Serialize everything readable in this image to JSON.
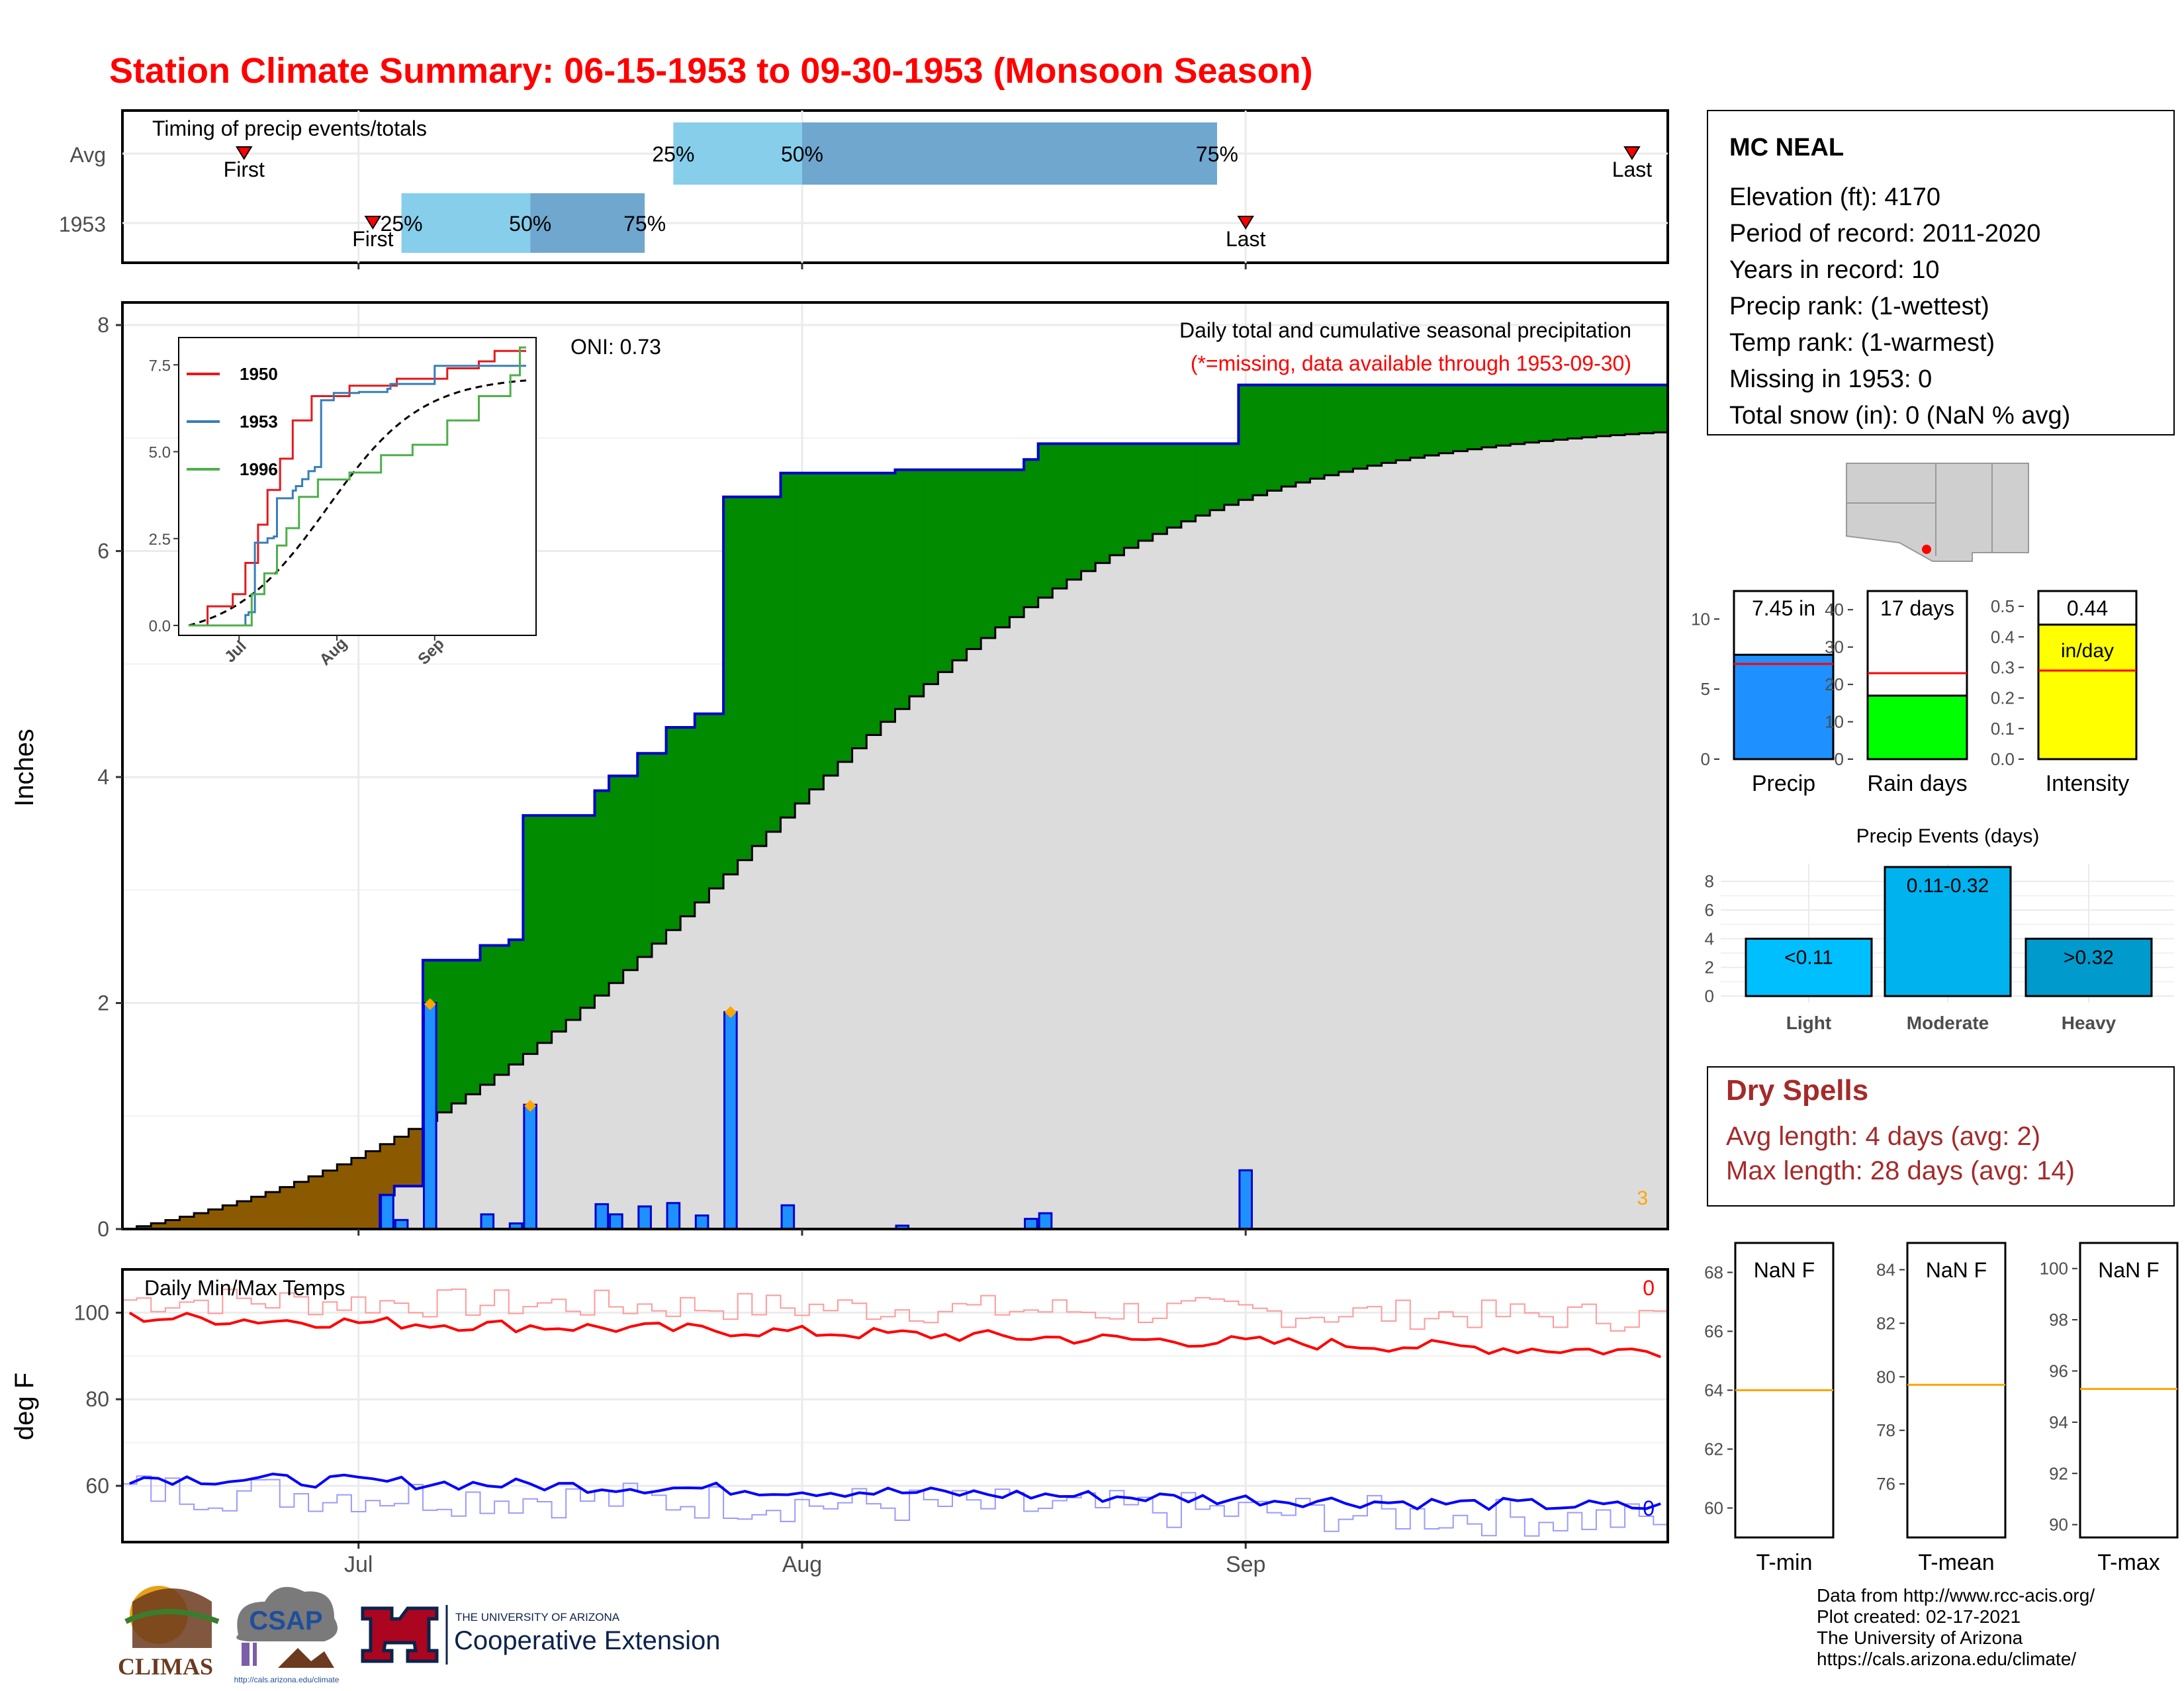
{
  "title": "Station Climate Summary: 06-15-1953 to 09-30-1953 (Monsoon Season)",
  "colors": {
    "title": "#ff0000",
    "precip_bar": "#1e90ff",
    "cum_1953": "#0000cd",
    "surplus": "#008b00",
    "normal": "#dcdcdc",
    "deficit": "#8b5a00",
    "tmax": "#ff0000",
    "tmin": "#0000ff",
    "dryspell": "#a52a2a"
  },
  "timing": {
    "title": "Timing of precip events/totals",
    "rows": [
      {
        "label": "Avg",
        "first_label": "First",
        "last_label": "Last",
        "q25": "25%",
        "q50": "50%",
        "q75": "75%",
        "first": "06-23",
        "p25": "07-23",
        "p50": "08-01",
        "p75": "08-30",
        "last": "09-28"
      },
      {
        "label": "1953",
        "first_label": "First",
        "last_label": "Last",
        "q25": "25%",
        "q50": "50%",
        "q75": "75%",
        "first": "07-02",
        "p25": "07-04",
        "p50": "07-13",
        "p75": "07-21",
        "last": "09-01"
      }
    ]
  },
  "main": {
    "ylabel": "Inches",
    "oni": "ONI: 0.73",
    "legend_title": "Daily total and cumulative seasonal precipitation",
    "missing_note": "(*=missing, data available through 1953-09-30)",
    "missing_count": "3",
    "x_ticks": [
      "Jul",
      "Aug",
      "Sep"
    ],
    "y_ticks": [
      "0",
      "2",
      "4",
      "6",
      "8"
    ]
  },
  "chart_data": [
    {
      "type": "area",
      "title": "Daily total and cumulative seasonal precipitation",
      "ylabel": "Inches",
      "ylim": [
        0,
        8.2
      ],
      "x_range": [
        "06-15",
        "09-30"
      ],
      "daily_precip": [
        {
          "date": "07-03",
          "value": 0.3
        },
        {
          "date": "07-04",
          "value": 0.08
        },
        {
          "date": "07-06",
          "value": 2.0
        },
        {
          "date": "07-10",
          "value": 0.13
        },
        {
          "date": "07-12",
          "value": 0.05
        },
        {
          "date": "07-13",
          "value": 1.1
        },
        {
          "date": "07-18",
          "value": 0.22
        },
        {
          "date": "07-19",
          "value": 0.13
        },
        {
          "date": "07-21",
          "value": 0.2
        },
        {
          "date": "07-23",
          "value": 0.23
        },
        {
          "date": "07-25",
          "value": 0.12
        },
        {
          "date": "07-27",
          "value": 1.92
        },
        {
          "date": "07-31",
          "value": 0.21
        },
        {
          "date": "08-08",
          "value": 0.03
        },
        {
          "date": "08-17",
          "value": 0.09
        },
        {
          "date": "08-18",
          "value": 0.14
        },
        {
          "date": "09-01",
          "value": 0.52
        }
      ],
      "orange_markers": [
        {
          "date": "07-06",
          "value": 1.99
        },
        {
          "date": "07-13",
          "value": 1.09
        },
        {
          "date": "07-27",
          "value": 1.92
        }
      ],
      "cumulative_normal_end": 7.05
    },
    {
      "type": "line",
      "title": "",
      "x_ticks": [
        "Jul",
        "Aug",
        "Sep"
      ],
      "y_ticks": [
        "0.0",
        "2.5",
        "5.0",
        "7.5"
      ],
      "ylim": [
        0,
        8
      ],
      "series": [
        {
          "name": "1950",
          "final": 7.6
        },
        {
          "name": "1953",
          "final": 7.45
        },
        {
          "name": "1996",
          "final": 8.0
        }
      ]
    },
    {
      "type": "line",
      "title": "Daily Min/Max Temps",
      "ylabel": "deg F",
      "ylim": [
        47,
        110
      ],
      "y_ticks": [
        "60",
        "80",
        "100"
      ],
      "x_ticks": [
        "Jul",
        "Aug",
        "Sep"
      ],
      "missing_max": "0",
      "missing_min": "0",
      "series": [
        {
          "name": "avg_max",
          "start": 99,
          "end": 91
        },
        {
          "name": "avg_min",
          "start": 62,
          "end": 55
        }
      ]
    },
    {
      "type": "bar",
      "title": "",
      "categories": [
        "Precip",
        "Rain days",
        "Intensity"
      ],
      "values": [
        7.45,
        17,
        0.44
      ],
      "labels": [
        "7.45 in",
        "17 days",
        "0.44"
      ],
      "unit_label": "in/day",
      "averages": [
        6.8,
        23,
        0.29
      ],
      "ylims": [
        [
          0,
          12
        ],
        [
          0,
          45
        ],
        [
          0,
          0.55
        ]
      ],
      "y_ticks": [
        [
          "0",
          "5",
          "10"
        ],
        [
          "0",
          "10",
          "20",
          "30",
          "40"
        ],
        [
          "0.0",
          "0.1",
          "0.2",
          "0.3",
          "0.4",
          "0.5"
        ]
      ]
    },
    {
      "type": "bar",
      "title": "Precip Events (days)",
      "categories": [
        "Light",
        "Moderate",
        "Heavy"
      ],
      "labels": [
        "<0.11",
        "0.11-0.32",
        ">0.32"
      ],
      "values": [
        4,
        9,
        4
      ],
      "ylim": [
        0,
        9
      ],
      "y_ticks": [
        "0",
        "2",
        "4",
        "6",
        "8"
      ]
    },
    {
      "type": "bar",
      "title": "",
      "categories": [
        "T-min",
        "T-mean",
        "T-max"
      ],
      "labels": [
        "NaN F",
        "NaN F",
        "NaN F"
      ],
      "averages": [
        64,
        79.7,
        95.3
      ],
      "ylims": [
        [
          59,
          69
        ],
        [
          74,
          85
        ],
        [
          89.5,
          101
        ]
      ],
      "y_ticks": [
        [
          "60",
          "62",
          "64",
          "66",
          "68"
        ],
        [
          "76",
          "78",
          "80",
          "82",
          "84"
        ],
        [
          "90",
          "92",
          "94",
          "96",
          "98",
          "100"
        ]
      ]
    }
  ],
  "station": {
    "name": "MC NEAL",
    "lines": [
      "Elevation (ft): 4170",
      "Period of record: 2011-2020",
      "Years in record: 10",
      "Precip rank:  (1-wettest)",
      "Temp rank:  (1-warmest)",
      "Missing in 1953: 0",
      "Total snow (in): 0 (NaN % avg)"
    ]
  },
  "dry_spells": {
    "title": "Dry Spells",
    "avg": "Avg length: 4 days (avg: 2)",
    "max": "Max length: 28 days (avg: 14)"
  },
  "footer": {
    "lines": [
      "Data from http://www.rcc-acis.org/",
      "Plot created: 02-17-2021",
      "The University of Arizona",
      "https://cals.arizona.edu/climate/"
    ],
    "climas": "CLIMAS",
    "csap": "CSAP",
    "csap_url": "http://cals.arizona.edu/climate",
    "ua_small": "THE UNIVERSITY OF ARIZONA",
    "ua_big": "Cooperative Extension"
  }
}
